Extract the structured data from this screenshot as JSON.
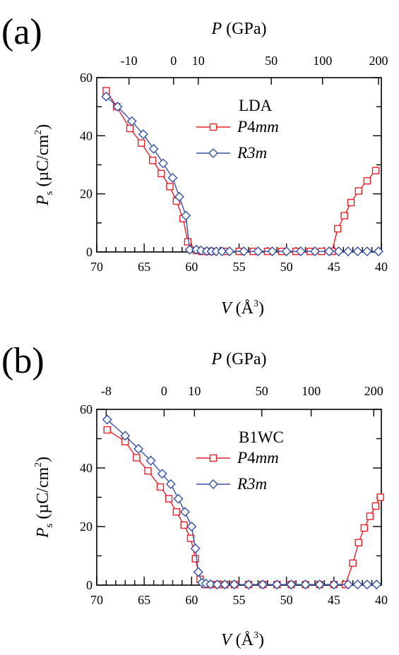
{
  "colors": {
    "p4mm": "#e8202a",
    "r3m": "#3451a4",
    "axis": "#000000"
  },
  "chart_data": [
    {
      "panel_label": "(a)",
      "type": "line",
      "legend_title": "LDA",
      "legend_placement": "top-right",
      "grid": false,
      "top_axis": {
        "label_main": "P",
        "label_unit": "(GPa)",
        "tick_labels": [
          "-10",
          "0",
          "10",
          "50",
          "100",
          "200"
        ],
        "tick_positions_volume": [
          66.6,
          61.9,
          59.3,
          51.6,
          46.2,
          40.3
        ]
      },
      "xlabel_main": "V",
      "xlabel_unit": "(Å",
      "xlabel_sup": "3",
      "xlabel_close": ")",
      "ylabel_main": "P",
      "ylabel_sub": "s",
      "ylabel_unit": "(µC/cm",
      "ylabel_sup": "2",
      "ylabel_close": ")",
      "xlim": [
        70,
        40
      ],
      "ylim": [
        0,
        60
      ],
      "xticks": [
        "70",
        "65",
        "60",
        "55",
        "50",
        "45",
        "40"
      ],
      "yticks": [
        "0",
        "20",
        "40",
        "60"
      ],
      "series": [
        {
          "name": "P4mm",
          "name_roman": "P4",
          "name_italic": "mm",
          "marker": "square",
          "color_key": "p4mm",
          "x": [
            69.0,
            67.9,
            66.5,
            65.3,
            64.1,
            63.2,
            62.3,
            61.6,
            60.9,
            60.4,
            59.5,
            58.9,
            58.0,
            56.5,
            55.0,
            53.5,
            52.0,
            50.5,
            49.0,
            47.5,
            46.3,
            45.2,
            44.6,
            43.9,
            43.2,
            42.4,
            41.5,
            40.6
          ],
          "y": [
            55.5,
            50.0,
            42.5,
            37.5,
            31.5,
            27.0,
            22.5,
            17.5,
            11.5,
            3.5,
            0.5,
            0.2,
            0.2,
            0.2,
            0.2,
            0.2,
            0.2,
            0.2,
            0.2,
            0.2,
            0.2,
            0.2,
            8.0,
            12.5,
            17.0,
            21.0,
            24.5,
            28.0
          ]
        },
        {
          "name": "R3m",
          "name_roman": "",
          "name_italic": "R3m",
          "marker": "diamond",
          "color_key": "r3m",
          "x": [
            69.0,
            67.8,
            66.3,
            65.1,
            64.0,
            63.0,
            62.0,
            61.3,
            60.6,
            60.2,
            59.5,
            59.0,
            58.4,
            57.9,
            57.4,
            56.8,
            56.0,
            54.5,
            53.0,
            51.5,
            50.0,
            48.5,
            47.0,
            45.5,
            44.5,
            43.5,
            42.5,
            41.5,
            40.3
          ],
          "y": [
            53.5,
            50.0,
            45.0,
            40.5,
            35.5,
            30.5,
            25.5,
            19.0,
            12.5,
            0.8,
            0.8,
            0.5,
            0.3,
            0.2,
            0.2,
            0.2,
            0.2,
            0.2,
            0.2,
            0.2,
            0.2,
            0.2,
            0.2,
            0.2,
            0.2,
            0.2,
            0.2,
            0.2,
            0.2
          ]
        }
      ]
    },
    {
      "panel_label": "(b)",
      "type": "line",
      "legend_title": "B1WC",
      "legend_placement": "top-right",
      "grid": false,
      "top_axis": {
        "label_main": "P",
        "label_unit": "(GPa)",
        "tick_labels": [
          "-8",
          "0",
          "10",
          "50",
          "100",
          "200"
        ],
        "tick_positions_volume": [
          69.0,
          62.9,
          59.7,
          52.6,
          47.4,
          40.8
        ]
      },
      "xlabel_main": "V",
      "xlabel_unit": "(Å",
      "xlabel_sup": "3",
      "xlabel_close": ")",
      "ylabel_main": "P",
      "ylabel_sub": "s",
      "ylabel_unit": "(µC/cm",
      "ylabel_sup": "2",
      "ylabel_close": ")",
      "xlim": [
        70,
        40
      ],
      "ylim": [
        0,
        60
      ],
      "xticks": [
        "70",
        "65",
        "60",
        "55",
        "50",
        "45",
        "40"
      ],
      "yticks": [
        "0",
        "20",
        "40",
        "60"
      ],
      "series": [
        {
          "name": "P4mm",
          "name_roman": "P4",
          "name_italic": "mm",
          "marker": "square",
          "color_key": "p4mm",
          "x": [
            68.9,
            67.0,
            65.8,
            64.6,
            63.3,
            62.4,
            61.6,
            60.8,
            60.1,
            59.6,
            59.1,
            58.6,
            58.0,
            57.2,
            56.5,
            55.5,
            54.0,
            52.5,
            51.0,
            49.5,
            48.0,
            46.5,
            45.0,
            43.8,
            43.0,
            42.4,
            41.8,
            41.2,
            40.6,
            40.1
          ],
          "y": [
            53.0,
            49.0,
            43.5,
            39.0,
            33.5,
            29.5,
            25.0,
            20.5,
            16.0,
            9.0,
            2.0,
            0.2,
            0.2,
            0.2,
            0.2,
            0.2,
            0.2,
            0.2,
            0.2,
            0.2,
            0.2,
            0.2,
            0.2,
            0.2,
            7.5,
            14.5,
            19.5,
            23.5,
            27.0,
            30.0
          ]
        },
        {
          "name": "R3m",
          "name_roman": "",
          "name_italic": "R3m",
          "marker": "diamond",
          "color_key": "r3m",
          "x": [
            68.9,
            67.0,
            65.6,
            64.3,
            63.1,
            62.2,
            61.4,
            60.7,
            60.0,
            59.6,
            59.3,
            58.9,
            58.5,
            58.0,
            57.3,
            56.5,
            55.5,
            54.0,
            52.5,
            51.0,
            49.5,
            48.0,
            46.5,
            45.0,
            43.5,
            42.5,
            41.5,
            40.5
          ],
          "y": [
            56.5,
            51.0,
            46.5,
            42.5,
            38.0,
            34.5,
            29.5,
            25.0,
            20.0,
            12.5,
            4.5,
            0.8,
            0.5,
            0.3,
            0.2,
            0.2,
            0.2,
            0.2,
            0.2,
            0.2,
            0.2,
            0.2,
            0.2,
            0.2,
            0.2,
            0.2,
            0.2,
            0.2
          ]
        }
      ]
    }
  ]
}
